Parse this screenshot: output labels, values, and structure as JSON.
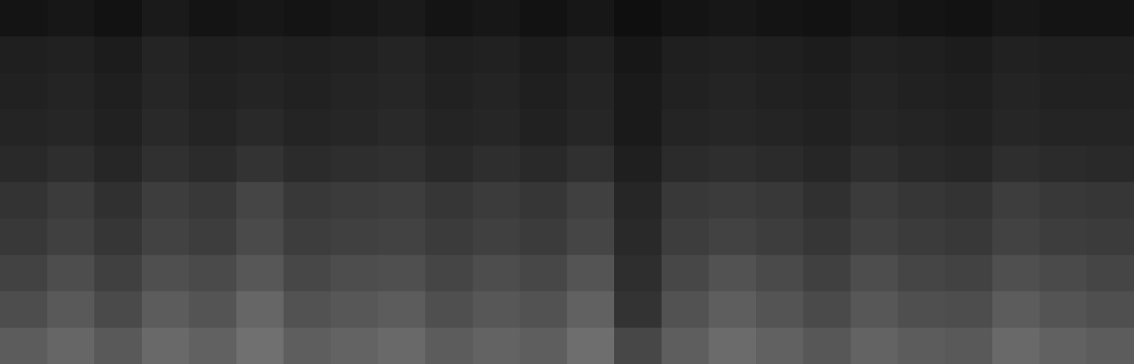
{
  "chart_data": {
    "type": "heatmap",
    "tick_labels": false,
    "color": "#ffffff",
    "zlim": [
      0,
      100
    ],
    "cells": [
      [
        8,
        9,
        7,
        10,
        8,
        9,
        8,
        9,
        10,
        8,
        9,
        7,
        9,
        6,
        8,
        9,
        8,
        7,
        9,
        8,
        7,
        9,
        8,
        8
      ],
      [
        12,
        13,
        11,
        14,
        12,
        13,
        12,
        13,
        14,
        12,
        13,
        11,
        13,
        9,
        12,
        13,
        12,
        11,
        13,
        12,
        11,
        13,
        12,
        12
      ],
      [
        13,
        14,
        12,
        15,
        13,
        14,
        13,
        14,
        15,
        13,
        14,
        12,
        14,
        10,
        13,
        14,
        13,
        12,
        14,
        13,
        12,
        14,
        13,
        13
      ],
      [
        14,
        15,
        13,
        16,
        14,
        16,
        14,
        15,
        16,
        14,
        15,
        13,
        15,
        10,
        14,
        15,
        14,
        13,
        15,
        14,
        13,
        15,
        14,
        14
      ],
      [
        16,
        18,
        15,
        19,
        17,
        20,
        17,
        18,
        19,
        16,
        18,
        16,
        19,
        12,
        17,
        18,
        17,
        15,
        18,
        16,
        15,
        18,
        17,
        16
      ],
      [
        20,
        23,
        19,
        24,
        22,
        27,
        22,
        23,
        24,
        21,
        23,
        21,
        25,
        15,
        22,
        23,
        22,
        19,
        23,
        21,
        20,
        24,
        22,
        21
      ],
      [
        22,
        25,
        21,
        26,
        24,
        29,
        24,
        25,
        26,
        23,
        25,
        23,
        27,
        16,
        24,
        26,
        24,
        21,
        25,
        23,
        22,
        26,
        24,
        23
      ],
      [
        26,
        30,
        25,
        31,
        29,
        34,
        28,
        30,
        31,
        27,
        30,
        28,
        33,
        18,
        28,
        32,
        29,
        25,
        30,
        27,
        26,
        31,
        29,
        27
      ],
      [
        30,
        35,
        29,
        36,
        33,
        40,
        32,
        34,
        36,
        31,
        34,
        32,
        38,
        20,
        32,
        37,
        33,
        29,
        34,
        31,
        30,
        36,
        33,
        31
      ],
      [
        36,
        40,
        35,
        41,
        38,
        44,
        37,
        39,
        41,
        36,
        39,
        37,
        43,
        28,
        37,
        42,
        38,
        34,
        39,
        36,
        35,
        41,
        38,
        36
      ]
    ]
  }
}
